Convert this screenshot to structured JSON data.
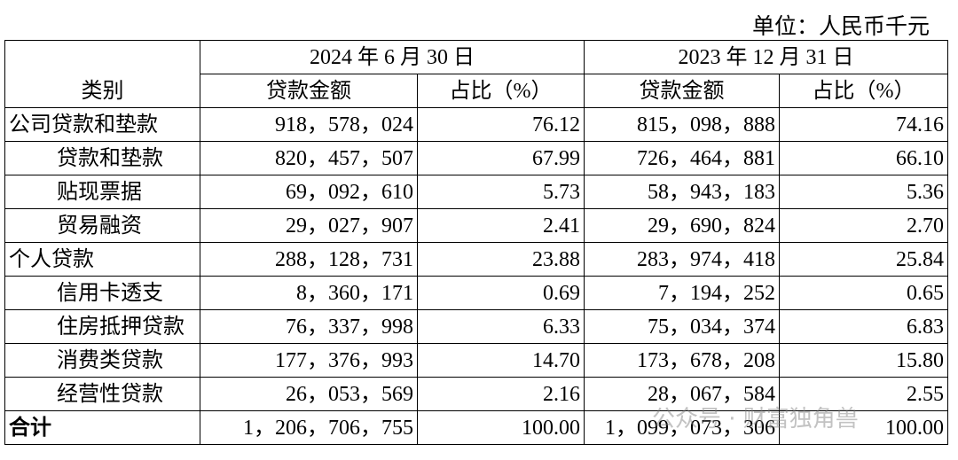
{
  "unit": "单位：人民币千元",
  "table": {
    "category_header": "类别",
    "periods": [
      "2024 年 6 月 30 日",
      "2023 年 12 月 31 日"
    ],
    "sub_headers": [
      "贷款金额",
      "占比（%）",
      "贷款金额",
      "占比（%）"
    ],
    "rows": [
      [
        "公司贷款和垫款",
        "918，578，024",
        "76.12",
        "815，098，888",
        "74.16"
      ],
      [
        "贷款和垫款",
        "820，457，507",
        "67.99",
        "726，464，881",
        "66.10"
      ],
      [
        "贴现票据",
        "69，092，610",
        "5.73",
        "58，943，183",
        "5.36"
      ],
      [
        "贸易融资",
        "29，027，907",
        "2.41",
        "29，690，824",
        "2.70"
      ],
      [
        "个人贷款",
        "288，128，731",
        "23.88",
        "283，974，418",
        "25.84"
      ],
      [
        "信用卡透支",
        "8，360，171",
        "0.69",
        "7，194，252",
        "0.65"
      ],
      [
        "住房抵押贷款",
        "76，337，998",
        "6.33",
        "75，034，374",
        "6.83"
      ],
      [
        "消费类贷款",
        "177，376，993",
        "14.70",
        "173，678，208",
        "15.80"
      ],
      [
        "经营性贷款",
        "26，053，569",
        "2.16",
        "28，067，584",
        "2.55"
      ],
      [
        "合计",
        "1，206，706，755",
        "100.00",
        "1，099，073，306",
        "100.00"
      ]
    ]
  },
  "watermark": "公众号 · 财富独角兽"
}
